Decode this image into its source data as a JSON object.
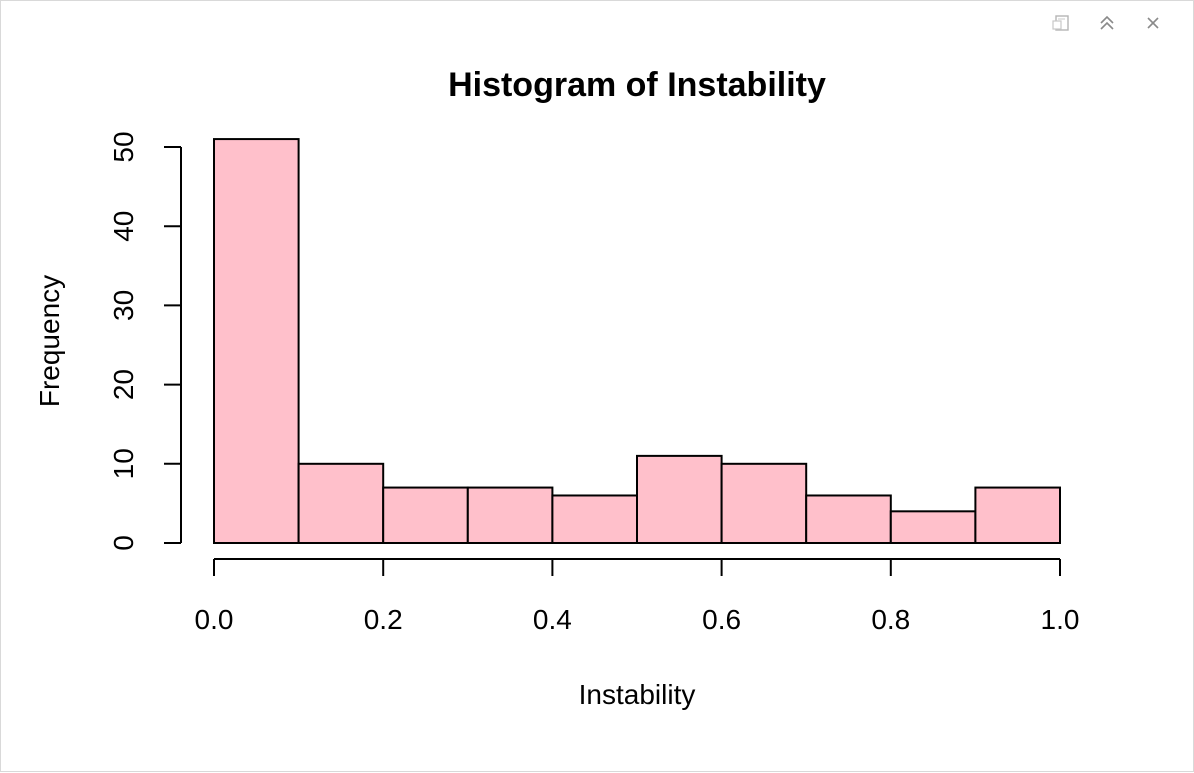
{
  "window": {
    "toolbar": {
      "icons": [
        "export-icon",
        "collapse-icon",
        "close-icon"
      ]
    }
  },
  "chart_data": {
    "type": "bar",
    "title": "Histogram of Instability",
    "xlabel": "Instability",
    "ylabel": "Frequency",
    "bins": [
      {
        "start": 0.0,
        "end": 0.1,
        "count": 51
      },
      {
        "start": 0.1,
        "end": 0.2,
        "count": 10
      },
      {
        "start": 0.2,
        "end": 0.3,
        "count": 7
      },
      {
        "start": 0.3,
        "end": 0.4,
        "count": 7
      },
      {
        "start": 0.4,
        "end": 0.5,
        "count": 6
      },
      {
        "start": 0.5,
        "end": 0.6,
        "count": 11
      },
      {
        "start": 0.6,
        "end": 0.7,
        "count": 10
      },
      {
        "start": 0.7,
        "end": 0.8,
        "count": 6
      },
      {
        "start": 0.8,
        "end": 0.9,
        "count": 4
      },
      {
        "start": 0.9,
        "end": 1.0,
        "count": 7
      }
    ],
    "xlim": [
      0,
      1
    ],
    "ylim": [
      0,
      51
    ],
    "xticks": [
      "0.0",
      "0.2",
      "0.4",
      "0.6",
      "0.8",
      "1.0"
    ],
    "xtick_values": [
      0.0,
      0.2,
      0.4,
      0.6,
      0.8,
      1.0
    ],
    "yticks": [
      "0",
      "10",
      "20",
      "30",
      "40",
      "50"
    ],
    "ytick_values": [
      0,
      10,
      20,
      30,
      40,
      50
    ],
    "bar_color": "#FFC0CB",
    "edge_color": "#000000",
    "grid": false
  }
}
